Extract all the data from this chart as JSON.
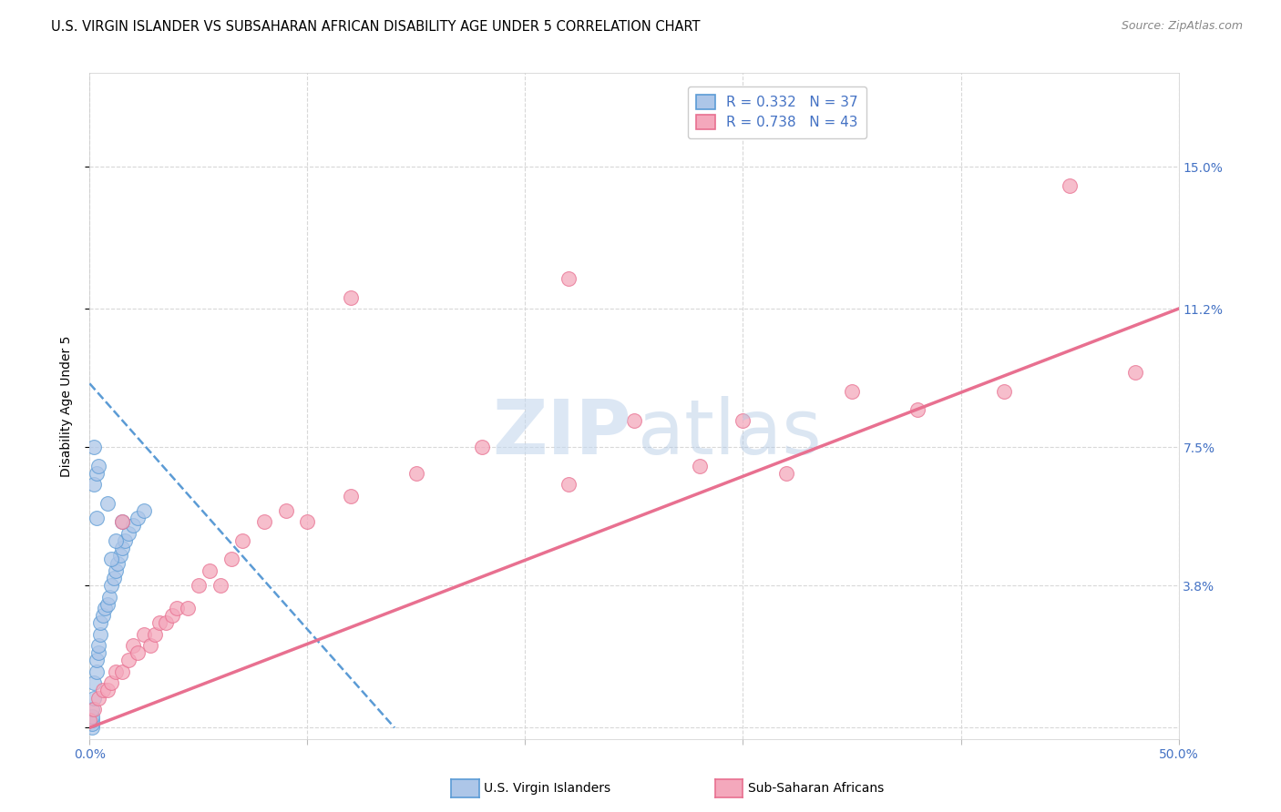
{
  "title": "U.S. VIRGIN ISLANDER VS SUBSAHARAN AFRICAN DISABILITY AGE UNDER 5 CORRELATION CHART",
  "source": "Source: ZipAtlas.com",
  "ylabel": "Disability Age Under 5",
  "xlim": [
    0.0,
    0.5
  ],
  "ylim": [
    -0.003,
    0.175
  ],
  "ytick_labels": [
    "",
    "3.8%",
    "7.5%",
    "11.2%",
    "15.0%"
  ],
  "ytick_values": [
    0.0,
    0.038,
    0.075,
    0.112,
    0.15
  ],
  "legend_label1": "R = 0.332   N = 37",
  "legend_label2": "R = 0.738   N = 43",
  "blue_scatter": [
    [
      0.001,
      0.0
    ],
    [
      0.001,
      0.001
    ],
    [
      0.001,
      0.002
    ],
    [
      0.001,
      0.003
    ],
    [
      0.001,
      0.005
    ],
    [
      0.002,
      0.008
    ],
    [
      0.002,
      0.012
    ],
    [
      0.003,
      0.015
    ],
    [
      0.003,
      0.018
    ],
    [
      0.004,
      0.02
    ],
    [
      0.004,
      0.022
    ],
    [
      0.005,
      0.025
    ],
    [
      0.005,
      0.028
    ],
    [
      0.006,
      0.03
    ],
    [
      0.007,
      0.032
    ],
    [
      0.008,
      0.033
    ],
    [
      0.009,
      0.035
    ],
    [
      0.01,
      0.038
    ],
    [
      0.011,
      0.04
    ],
    [
      0.012,
      0.042
    ],
    [
      0.013,
      0.044
    ],
    [
      0.014,
      0.046
    ],
    [
      0.015,
      0.048
    ],
    [
      0.016,
      0.05
    ],
    [
      0.018,
      0.052
    ],
    [
      0.02,
      0.054
    ],
    [
      0.022,
      0.056
    ],
    [
      0.025,
      0.058
    ],
    [
      0.002,
      0.065
    ],
    [
      0.003,
      0.068
    ],
    [
      0.004,
      0.07
    ],
    [
      0.002,
      0.075
    ],
    [
      0.003,
      0.056
    ],
    [
      0.01,
      0.045
    ],
    [
      0.008,
      0.06
    ],
    [
      0.012,
      0.05
    ],
    [
      0.015,
      0.055
    ]
  ],
  "pink_scatter": [
    [
      0.0,
      0.002
    ],
    [
      0.002,
      0.005
    ],
    [
      0.004,
      0.008
    ],
    [
      0.006,
      0.01
    ],
    [
      0.008,
      0.01
    ],
    [
      0.01,
      0.012
    ],
    [
      0.012,
      0.015
    ],
    [
      0.015,
      0.015
    ],
    [
      0.018,
      0.018
    ],
    [
      0.02,
      0.022
    ],
    [
      0.022,
      0.02
    ],
    [
      0.025,
      0.025
    ],
    [
      0.028,
      0.022
    ],
    [
      0.03,
      0.025
    ],
    [
      0.032,
      0.028
    ],
    [
      0.035,
      0.028
    ],
    [
      0.038,
      0.03
    ],
    [
      0.04,
      0.032
    ],
    [
      0.045,
      0.032
    ],
    [
      0.05,
      0.038
    ],
    [
      0.055,
      0.042
    ],
    [
      0.06,
      0.038
    ],
    [
      0.065,
      0.045
    ],
    [
      0.07,
      0.05
    ],
    [
      0.08,
      0.055
    ],
    [
      0.09,
      0.058
    ],
    [
      0.1,
      0.055
    ],
    [
      0.12,
      0.062
    ],
    [
      0.15,
      0.068
    ],
    [
      0.18,
      0.075
    ],
    [
      0.22,
      0.065
    ],
    [
      0.25,
      0.082
    ],
    [
      0.28,
      0.07
    ],
    [
      0.3,
      0.082
    ],
    [
      0.32,
      0.068
    ],
    [
      0.35,
      0.09
    ],
    [
      0.38,
      0.085
    ],
    [
      0.42,
      0.09
    ],
    [
      0.45,
      0.145
    ],
    [
      0.22,
      0.12
    ],
    [
      0.48,
      0.095
    ],
    [
      0.015,
      0.055
    ],
    [
      0.12,
      0.115
    ]
  ],
  "blue_trendline_x": [
    0.0,
    0.14
  ],
  "blue_trendline_y": [
    0.092,
    0.0
  ],
  "pink_trendline_x": [
    0.0,
    0.5
  ],
  "pink_trendline_y": [
    0.0,
    0.112
  ],
  "blue_color": "#5b9bd5",
  "pink_color": "#e87090",
  "blue_scatter_color": "#adc6e8",
  "pink_scatter_color": "#f4a8bc",
  "grid_color": "#d8d8d8",
  "title_fontsize": 10.5,
  "tick_label_color": "#4472c4"
}
